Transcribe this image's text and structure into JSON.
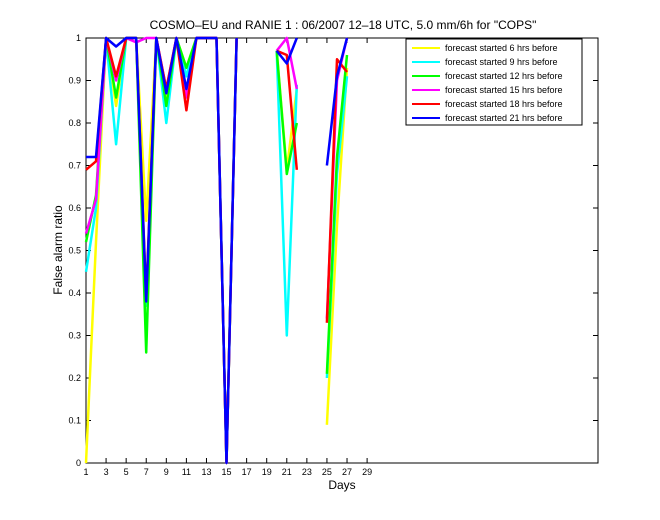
{
  "chart_data": {
    "type": "line",
    "title": "COSMO–EU and RANIE 1 : 06/2007 12–18 UTC, 5.0 mm/6h for \"COPS\"",
    "xlabel": "Days",
    "ylabel": "False alarm ratio",
    "xlim": [
      1,
      52
    ],
    "ylim": [
      0,
      1
    ],
    "x_ticks": [
      1,
      3,
      5,
      7,
      9,
      11,
      13,
      15,
      17,
      19,
      21,
      23,
      25,
      27,
      29
    ],
    "y_ticks": [
      0,
      0.1,
      0.2,
      0.3,
      0.4,
      0.5,
      0.6,
      0.7,
      0.8,
      0.9,
      1
    ],
    "grid": false,
    "legend_position": "top-right",
    "series": [
      {
        "name": "forecast started 6 hrs before",
        "color": "#ffff00",
        "points": [
          [
            1,
            0.0
          ],
          [
            2,
            0.52
          ],
          [
            3,
            1.0
          ],
          [
            4,
            0.84
          ],
          [
            5,
            1.0
          ],
          [
            6,
            1.0
          ],
          [
            7,
            0.57
          ],
          [
            8,
            1.0
          ],
          [
            9,
            0.86
          ],
          [
            10,
            1.0
          ],
          [
            11,
            0.93
          ],
          [
            12,
            1.0
          ],
          [
            13,
            1.0
          ],
          [
            14,
            1.0
          ],
          [
            15,
            0.0
          ],
          [
            16,
            1.0
          ],
          null,
          [
            20,
            0.97
          ],
          [
            21,
            0.69
          ],
          [
            22,
            0.88
          ],
          null,
          [
            25,
            0.09
          ],
          [
            26,
            0.56
          ],
          [
            27,
            0.93
          ]
        ]
      },
      {
        "name": "forecast started 9 hrs before",
        "color": "#00ffff",
        "points": [
          [
            1,
            0.45
          ],
          [
            2,
            0.6
          ],
          [
            3,
            1.0
          ],
          [
            4,
            0.75
          ],
          [
            5,
            1.0
          ],
          [
            6,
            1.0
          ],
          [
            7,
            0.37
          ],
          [
            8,
            1.0
          ],
          [
            9,
            0.8
          ],
          [
            10,
            1.0
          ],
          [
            11,
            0.91
          ],
          [
            12,
            1.0
          ],
          [
            13,
            1.0
          ],
          [
            14,
            1.0
          ],
          [
            15,
            0.0
          ],
          [
            16,
            1.0
          ],
          null,
          [
            20,
            0.97
          ],
          [
            21,
            0.3
          ],
          [
            22,
            0.89
          ],
          null,
          [
            25,
            0.2
          ],
          [
            26,
            0.68
          ],
          [
            27,
            0.91
          ]
        ]
      },
      {
        "name": "forecast started 12 hrs before",
        "color": "#00ff00",
        "points": [
          [
            1,
            0.52
          ],
          [
            2,
            0.63
          ],
          [
            3,
            1.0
          ],
          [
            4,
            0.86
          ],
          [
            5,
            1.0
          ],
          [
            6,
            1.0
          ],
          [
            7,
            0.26
          ],
          [
            8,
            1.0
          ],
          [
            9,
            0.84
          ],
          [
            10,
            1.0
          ],
          [
            11,
            0.93
          ],
          [
            12,
            1.0
          ],
          [
            13,
            1.0
          ],
          [
            14,
            1.0
          ],
          [
            15,
            0.0
          ],
          [
            16,
            1.0
          ],
          null,
          [
            20,
            0.97
          ],
          [
            21,
            0.68
          ],
          [
            22,
            0.8
          ],
          null,
          [
            25,
            0.21
          ],
          [
            26,
            0.72
          ],
          [
            27,
            0.96
          ]
        ]
      },
      {
        "name": "forecast started 15 hrs before",
        "color": "#ff00ff",
        "points": [
          [
            1,
            0.54
          ],
          [
            2,
            0.62
          ],
          [
            3,
            1.0
          ],
          [
            4,
            0.9
          ],
          [
            5,
            1.0
          ],
          [
            6,
            0.99
          ],
          [
            7,
            1.0
          ],
          [
            8,
            1.0
          ],
          [
            9,
            0.88
          ],
          [
            10,
            1.0
          ],
          [
            11,
            0.86
          ],
          [
            12,
            1.0
          ],
          [
            13,
            1.0
          ],
          [
            14,
            1.0
          ],
          [
            15,
            0.0
          ],
          [
            16,
            1.0
          ],
          null,
          [
            20,
            0.97
          ],
          [
            21,
            1.0
          ],
          [
            22,
            0.88
          ],
          null,
          [
            25,
            0.34
          ],
          [
            26,
            0.9
          ],
          [
            27,
            1.0
          ]
        ]
      },
      {
        "name": "forecast started 18 hrs before",
        "color": "#ff0000",
        "points": [
          [
            1,
            0.69
          ],
          [
            2,
            0.71
          ],
          [
            3,
            1.0
          ],
          [
            4,
            0.91
          ],
          [
            5,
            1.0
          ],
          [
            6,
            1.0
          ],
          [
            7,
            0.39
          ],
          [
            8,
            1.0
          ],
          [
            9,
            0.88
          ],
          [
            10,
            1.0
          ],
          [
            11,
            0.83
          ],
          [
            12,
            1.0
          ],
          [
            13,
            1.0
          ],
          [
            14,
            1.0
          ],
          [
            15,
            0.0
          ],
          [
            16,
            1.0
          ],
          null,
          [
            20,
            0.97
          ],
          [
            21,
            0.96
          ],
          [
            22,
            0.69
          ],
          null,
          [
            25,
            0.33
          ],
          [
            26,
            0.95
          ],
          [
            27,
            0.92
          ]
        ]
      },
      {
        "name": "forecast started 21 hrs before",
        "color": "#0000ff",
        "points": [
          [
            1,
            0.72
          ],
          [
            2,
            0.72
          ],
          [
            3,
            1.0
          ],
          [
            4,
            0.98
          ],
          [
            5,
            1.0
          ],
          [
            6,
            1.0
          ],
          [
            7,
            0.38
          ],
          [
            8,
            1.0
          ],
          [
            9,
            0.87
          ],
          [
            10,
            1.0
          ],
          [
            11,
            0.88
          ],
          [
            12,
            1.0
          ],
          [
            13,
            1.0
          ],
          [
            14,
            1.0
          ],
          [
            15,
            0.0
          ],
          [
            16,
            1.0
          ],
          null,
          [
            20,
            0.97
          ],
          [
            21,
            0.94
          ],
          [
            22,
            1.0
          ],
          null,
          [
            25,
            0.7
          ],
          [
            26,
            0.91
          ],
          [
            27,
            1.0
          ]
        ]
      }
    ]
  }
}
